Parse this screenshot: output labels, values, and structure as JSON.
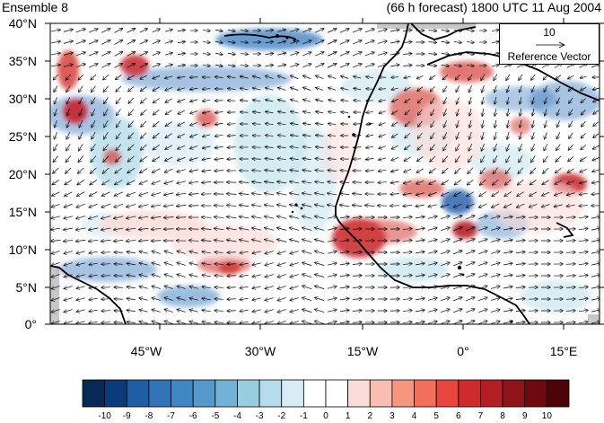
{
  "title_left": "Ensemble 8",
  "title_right": "(66 h forecast) 1800 UTC 11 Aug 2004",
  "map": {
    "lat_ticks": [
      "40°N",
      "35°N",
      "30°N",
      "25°N",
      "20°N",
      "15°N",
      "10°N",
      "5°N",
      "0°"
    ],
    "lon_ticks": [
      "45°W",
      "30°W",
      "15°W",
      "0°",
      "15°E"
    ]
  },
  "reference_vector": {
    "magnitude": "10",
    "label": "Reference Vector"
  },
  "colorbar": {
    "labels": [
      "-10",
      "-9",
      "-8",
      "-7",
      "-6",
      "-5",
      "-4",
      "-3",
      "-2",
      "-1",
      "0",
      "1",
      "2",
      "3",
      "4",
      "5",
      "6",
      "7",
      "8",
      "9",
      "10"
    ],
    "colors": [
      "#082954",
      "#0c3b7a",
      "#1f5ea5",
      "#3374b8",
      "#3f86c4",
      "#5599ca",
      "#73b1d7",
      "#98cde0",
      "#b5dcea",
      "#d8ecf5",
      "#ffffff",
      "#ffffff",
      "#fbdcd8",
      "#f9bdb1",
      "#f7967f",
      "#f26f5c",
      "#e8453c",
      "#cf2a2c",
      "#b31d24",
      "#8f1419",
      "#6e0a0f",
      "#4e0407"
    ]
  },
  "colors": {
    "negative": "#3a7bbf",
    "positive": "#d6403a",
    "land_line": "#000000"
  }
}
